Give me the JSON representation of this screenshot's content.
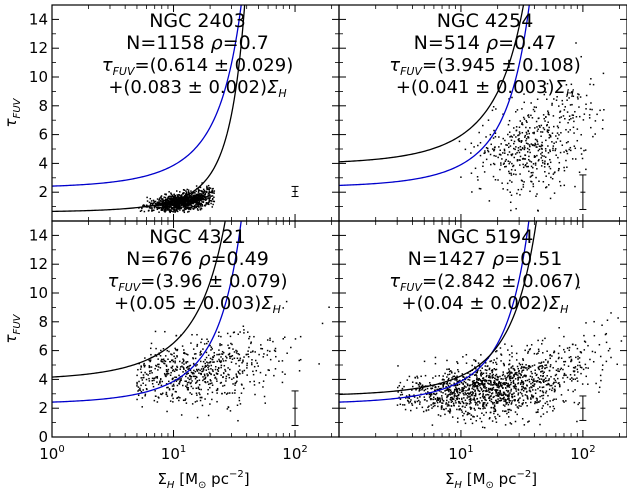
{
  "chart_data": {
    "type": "scatter",
    "x_axis": {
      "label": "Σ_H [M_⊙ pc⁻²]",
      "label_parts": {
        "sym": "Σ",
        "sub": "H",
        "bracket_open": " [M",
        "sun": "⊙",
        "unit": " pc",
        "sup": "−2",
        "bracket_close": "]"
      },
      "scale": "log",
      "range": [
        1,
        230
      ],
      "ticks": [
        {
          "value": 1,
          "base": "10",
          "exp": "0"
        },
        {
          "value": 10,
          "base": "10",
          "exp": "1"
        },
        {
          "value": 100,
          "base": "10",
          "exp": "2"
        }
      ]
    },
    "y_axis": {
      "label": "τ_FUV",
      "label_parts": {
        "sym": "τ",
        "sub": "FUV"
      },
      "range": [
        0,
        15
      ],
      "top_panel_ticks": [
        2,
        4,
        6,
        8,
        10,
        12,
        14
      ],
      "bottom_panel_ticks": [
        0,
        2,
        4,
        6,
        8,
        10,
        12,
        14
      ]
    },
    "panels": [
      {
        "id": "ngc2403",
        "title": "NGC 2403",
        "stats": {
          "N": "1158",
          "rho": "0.7"
        },
        "fit_intercept": "(0.614 ± 0.029)",
        "fit_slope": "+(0.083 ± 0.002)",
        "fit_params": {
          "a": 0.614,
          "b": 0.083
        },
        "blue_curve": {
          "a": 2.3,
          "b": 0.052
        },
        "error_bar": {
          "x": 100,
          "y": 2.05,
          "err": 0.35
        },
        "cloud": {
          "n": 1158,
          "x_min": 5,
          "x_max": 22,
          "x_center": 12,
          "y_center": 1.35,
          "y_spread": 0.3,
          "slope": 0.08
        }
      },
      {
        "id": "ngc4254",
        "title": "NGC 4254",
        "stats": {
          "N": "514",
          "rho": "0.47"
        },
        "fit_intercept": "(3.945 ± 0.108)",
        "fit_slope": "+(0.041 ± 0.003)",
        "fit_params": {
          "a": 3.945,
          "b": 0.041
        },
        "blue_curve": {
          "a": 2.35,
          "b": 0.051
        },
        "error_bar": {
          "x": 100,
          "y": 2.0,
          "err": 1.2
        },
        "cloud": {
          "n": 514,
          "x_min": 9,
          "x_max": 150,
          "x_center": 40,
          "y_center": 5.2,
          "y_spread": 1.6,
          "slope": 0.04
        }
      },
      {
        "id": "ngc4321",
        "title": "NGC 4321",
        "stats": {
          "N": "676",
          "rho": "0.49"
        },
        "fit_intercept": "(3.96 ± 0.079)",
        "fit_slope": "+(0.05 ± 0.003)",
        "fit_params": {
          "a": 3.96,
          "b": 0.05
        },
        "blue_curve": {
          "a": 2.3,
          "b": 0.052
        },
        "error_bar": {
          "x": 100,
          "y": 2.0,
          "err": 1.2
        },
        "cloud": {
          "n": 676,
          "x_min": 5,
          "x_max": 200,
          "x_center": 15,
          "y_center": 4.5,
          "y_spread": 1.1,
          "slope": 0.045
        }
      },
      {
        "id": "ngc5194",
        "title": "NGC 5194",
        "stats": {
          "N": "1427",
          "rho": "0.51"
        },
        "fit_intercept": "(2.842 ± 0.067)",
        "fit_slope": "+(0.04 ± 0.002)",
        "fit_params": {
          "a": 2.842,
          "b": 0.04
        },
        "blue_curve": {
          "a": 2.3,
          "b": 0.052
        },
        "error_bar": {
          "x": 100,
          "y": 2.0,
          "err": 0.85
        },
        "cloud": {
          "n": 1427,
          "x_min": 3,
          "x_max": 220,
          "x_center": 18,
          "y_center": 3.3,
          "y_spread": 1.0,
          "slope": 0.035
        }
      }
    ],
    "colors": {
      "fit": "#000000",
      "reference": "#0000cc",
      "points": "#000000"
    }
  }
}
